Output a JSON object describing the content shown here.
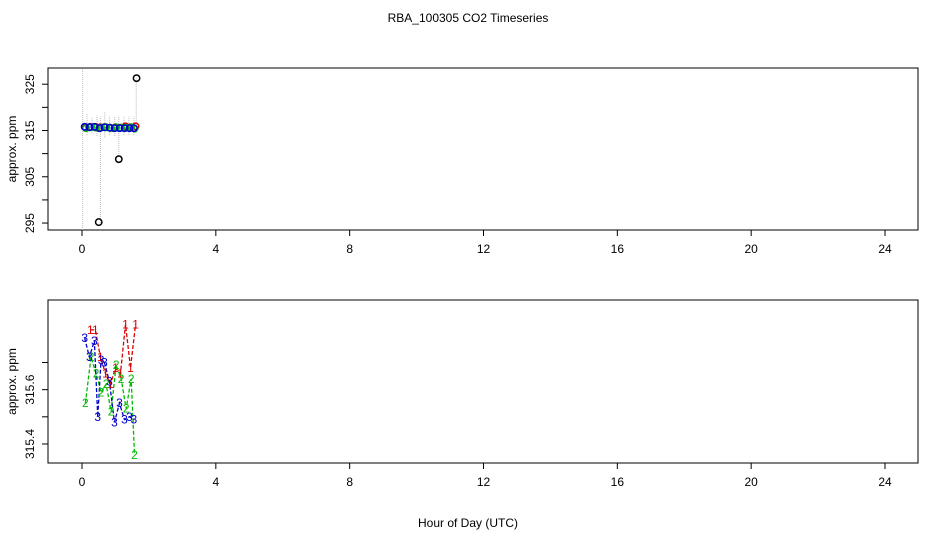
{
  "title": "RBA_100305  CO2 Timeseries",
  "xlabel": "Hour of Day (UTC)",
  "colors": {
    "s1": "#dd0000",
    "s2": "#00bb00",
    "s3": "#0000cc",
    "outlier": "#000000",
    "range": "#bbbbbb"
  },
  "chart_data": [
    {
      "type": "scatter",
      "ylabel": "approx. ppm",
      "xlim": [
        0,
        24
      ],
      "ylim": [
        293.5,
        328.5
      ],
      "x_ticks": [
        0,
        4,
        8,
        12,
        16,
        20,
        24
      ],
      "y_ticks": [
        295,
        305,
        315,
        325
      ],
      "y_minor_ticks": [
        300,
        310,
        320
      ],
      "range_lines": [
        {
          "x": 0.02,
          "low": 293.5,
          "high": 328.5
        },
        {
          "x": 0.15,
          "low": 314.0,
          "high": 318.5
        },
        {
          "x": 0.3,
          "low": 314.5,
          "high": 318.0
        },
        {
          "x": 0.45,
          "low": 313.8,
          "high": 318.2
        },
        {
          "x": 0.55,
          "low": 295.0,
          "high": 318.0
        },
        {
          "x": 0.68,
          "low": 313.5,
          "high": 319.0
        },
        {
          "x": 0.82,
          "low": 314.0,
          "high": 318.0
        },
        {
          "x": 0.98,
          "low": 313.8,
          "high": 318.0
        },
        {
          "x": 1.1,
          "low": 309.5,
          "high": 318.2
        },
        {
          "x": 1.25,
          "low": 314.0,
          "high": 318.0
        },
        {
          "x": 1.4,
          "low": 314.0,
          "high": 318.0
        },
        {
          "x": 1.55,
          "low": 314.0,
          "high": 318.0
        },
        {
          "x": 1.62,
          "low": 314.5,
          "high": 326.5
        }
      ],
      "series": [
        {
          "name": "1",
          "color": "#dd0000",
          "x": [
            0.1,
            0.25,
            0.4,
            0.55,
            0.7,
            0.85,
            1.0,
            1.15,
            1.3,
            1.45,
            1.6
          ],
          "y": [
            315.7,
            315.8,
            315.8,
            315.7,
            315.7,
            315.6,
            315.7,
            315.6,
            315.9,
            315.7,
            315.9
          ]
        },
        {
          "name": "2",
          "color": "#00bb00",
          "x": [
            0.12,
            0.27,
            0.42,
            0.57,
            0.72,
            0.87,
            1.02,
            1.17,
            1.32,
            1.47,
            1.57
          ],
          "y": [
            315.5,
            315.7,
            315.6,
            315.6,
            315.7,
            315.5,
            315.7,
            315.6,
            315.6,
            315.7,
            315.4
          ]
        },
        {
          "name": "3",
          "color": "#0000cc",
          "x": [
            0.08,
            0.22,
            0.37,
            0.52,
            0.67,
            0.82,
            0.97,
            1.12,
            1.27,
            1.42,
            1.55
          ],
          "y": [
            315.8,
            315.7,
            315.8,
            315.5,
            315.7,
            315.6,
            315.5,
            315.5,
            315.5,
            315.5,
            315.5
          ]
        }
      ],
      "outliers": [
        {
          "x": 0.5,
          "y": 295.2
        },
        {
          "x": 1.1,
          "y": 308.8
        },
        {
          "x": 1.63,
          "y": 326.3
        }
      ]
    },
    {
      "type": "line",
      "ylabel": "approx. ppm",
      "xlim": [
        0,
        24
      ],
      "ylim": [
        315.33,
        315.93
      ],
      "x_ticks": [
        0,
        4,
        8,
        12,
        16,
        20,
        24
      ],
      "y_ticks": [
        315.4,
        315.6
      ],
      "y_minor_ticks": [
        315.5,
        315.7
      ],
      "series": [
        {
          "name": "1",
          "color": "#dd0000",
          "x": [
            0.25,
            0.4,
            0.55,
            0.7,
            0.85,
            1.0,
            1.15,
            1.3,
            1.45,
            1.6
          ],
          "y": [
            315.82,
            315.82,
            315.72,
            315.66,
            315.62,
            315.68,
            315.66,
            315.84,
            315.68,
            315.84
          ],
          "labels": [
            "1",
            "1",
            "1",
            "1",
            "1",
            "1",
            "1",
            "1",
            "1",
            "1"
          ]
        },
        {
          "name": "2",
          "color": "#00bb00",
          "x": [
            0.1,
            0.27,
            0.42,
            0.57,
            0.72,
            0.87,
            1.02,
            1.17,
            1.32,
            1.47,
            1.57
          ],
          "y": [
            315.55,
            315.72,
            315.66,
            315.59,
            315.62,
            315.52,
            315.69,
            315.64,
            315.53,
            315.64,
            315.36
          ],
          "labels": [
            "2",
            "2",
            "2",
            "2",
            "2",
            "2",
            "2",
            "2",
            "2",
            "2",
            "2"
          ]
        },
        {
          "name": "3",
          "color": "#0000cc",
          "x": [
            0.08,
            0.22,
            0.37,
            0.47,
            0.57,
            0.67,
            0.82,
            0.97,
            1.12,
            1.27,
            1.42,
            1.55
          ],
          "y": [
            315.79,
            315.72,
            315.78,
            315.5,
            315.71,
            315.7,
            315.63,
            315.48,
            315.55,
            315.49,
            315.5,
            315.49
          ],
          "labels": [
            "3",
            "3",
            "3",
            "3",
            "3",
            "3",
            "3",
            "3",
            "3",
            "3",
            "3",
            "3"
          ]
        }
      ]
    }
  ]
}
